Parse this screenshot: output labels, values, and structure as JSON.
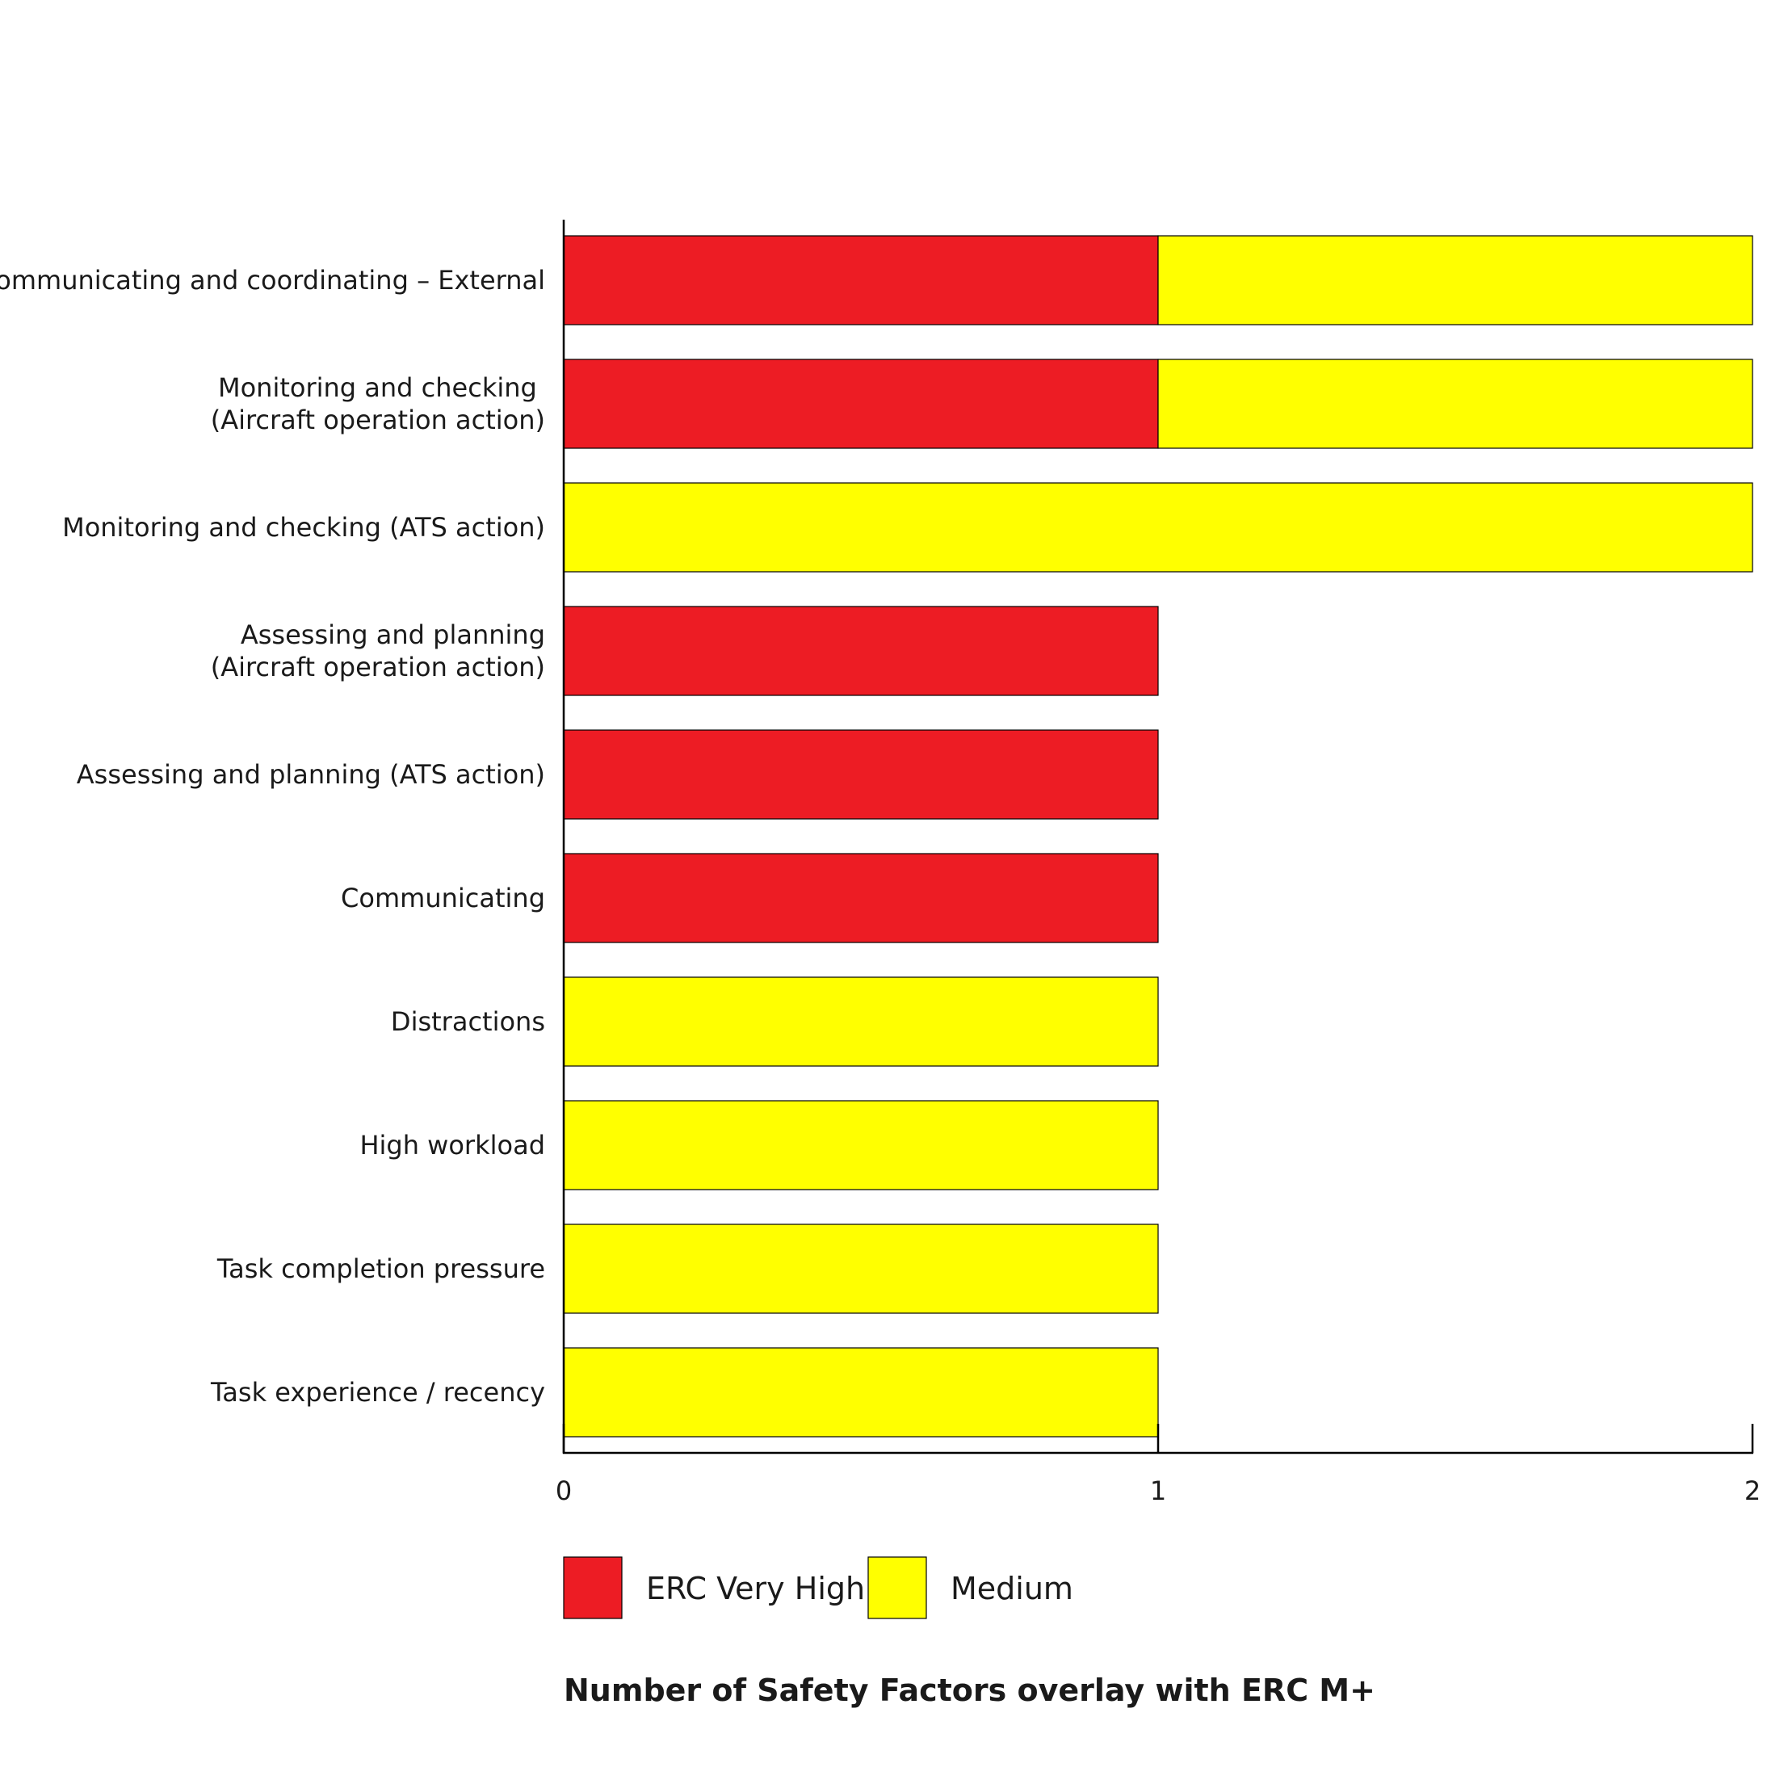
{
  "chart_data": {
    "type": "bar",
    "orientation": "horizontal",
    "stacked": true,
    "title": "Number of Safety Factors overlay with ERC M+",
    "categories": [
      [
        "Communicating and coordinating – External"
      ],
      [
        "Monitoring and checking ",
        "(Aircraft operation action)"
      ],
      [
        "Monitoring and checking (ATS action)"
      ],
      [
        "Assessing and planning",
        "(Aircraft operation action)"
      ],
      [
        "Assessing and planning (ATS action)"
      ],
      [
        "Communicating"
      ],
      [
        "Distractions"
      ],
      [
        "High workload"
      ],
      [
        "Task completion pressure"
      ],
      [
        "Task experience / recency"
      ]
    ],
    "series": [
      {
        "name": "ERC Very High",
        "color": "#ED1C24",
        "values": [
          1,
          1,
          0,
          1,
          1,
          1,
          0,
          0,
          0,
          0
        ]
      },
      {
        "name": "Medium",
        "color": "#FFFF00",
        "values": [
          1,
          1,
          2,
          0,
          0,
          0,
          1,
          1,
          1,
          1
        ]
      }
    ],
    "xlim": [
      0,
      2
    ],
    "xticks": [
      "0",
      "1",
      "2"
    ],
    "xlabel": "",
    "ylabel": "",
    "grid": false,
    "legend_position": "bottom"
  }
}
